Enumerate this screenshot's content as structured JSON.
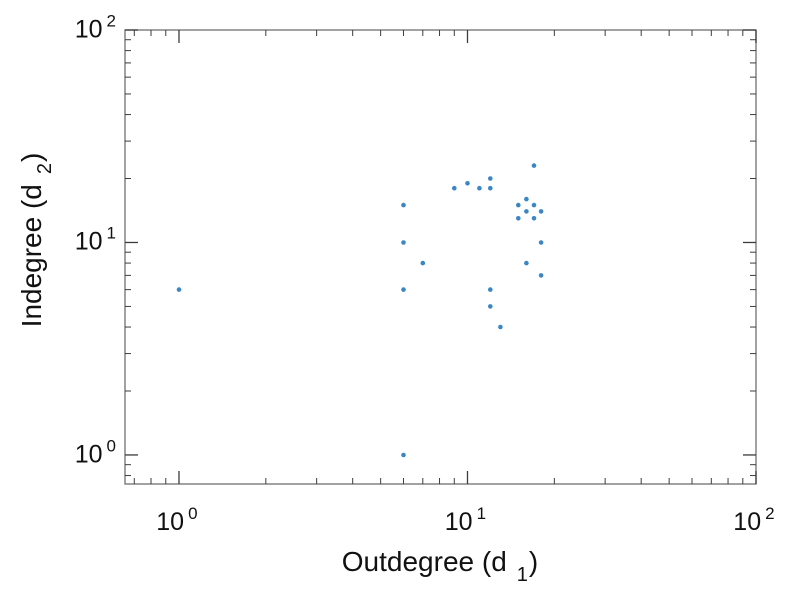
{
  "chart_data": {
    "type": "scatter",
    "title": "",
    "xlabel_main": "Outdegree (d",
    "xlabel_sub": "1",
    "xlabel_close": ")",
    "ylabel_main": "Indegree (d",
    "ylabel_sub": "2",
    "ylabel_close": ")",
    "xscale": "log",
    "yscale": "log",
    "xlim": [
      0.65,
      100
    ],
    "ylim": [
      0.73,
      100
    ],
    "grid": false,
    "legend": "none",
    "x_ticks": [
      {
        "base": "10",
        "exp": "0",
        "value": 1
      },
      {
        "base": "10",
        "exp": "1",
        "value": 10
      },
      {
        "base": "10",
        "exp": "2",
        "value": 100
      }
    ],
    "y_ticks": [
      {
        "base": "10",
        "exp": "0",
        "value": 1
      },
      {
        "base": "10",
        "exp": "1",
        "value": 10
      },
      {
        "base": "10",
        "exp": "2",
        "value": 100
      }
    ],
    "points": [
      [
        1,
        6
      ],
      [
        6,
        15
      ],
      [
        6,
        10
      ],
      [
        6,
        6
      ],
      [
        6,
        1
      ],
      [
        7,
        8
      ],
      [
        9,
        18
      ],
      [
        10,
        19
      ],
      [
        11,
        18
      ],
      [
        12,
        20
      ],
      [
        12,
        18
      ],
      [
        12,
        6
      ],
      [
        12,
        5
      ],
      [
        13,
        4
      ],
      [
        15,
        15
      ],
      [
        15,
        13
      ],
      [
        16,
        16
      ],
      [
        16,
        14
      ],
      [
        16,
        8
      ],
      [
        17,
        23
      ],
      [
        17,
        15
      ],
      [
        17,
        13
      ],
      [
        18,
        14
      ],
      [
        18,
        10
      ],
      [
        18,
        7
      ]
    ],
    "point_color": "#3a87c4",
    "frame_color": "#707070",
    "tick_color": "#3c3c3c"
  }
}
